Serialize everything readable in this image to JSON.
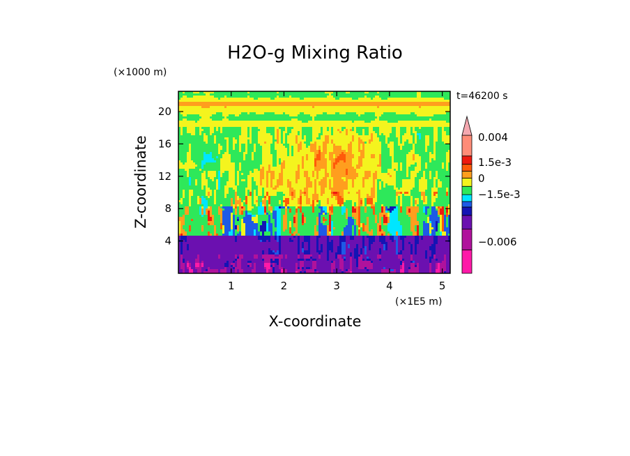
{
  "chart_data": {
    "type": "heatmap",
    "title": "H2O-g Mixing Ratio",
    "xlabel": "X-coordinate",
    "ylabel": "Z-coordinate",
    "x_scale_label": "(×1E5 m)",
    "y_scale_label": "(×1000 m)",
    "time_label": "t=46200 s",
    "xlim": [
      0,
      5.15
    ],
    "ylim": [
      0,
      22.5
    ],
    "x_ticks": [
      "1",
      "2",
      "3",
      "4",
      "5"
    ],
    "y_ticks": [
      "4",
      "8",
      "12",
      "16",
      "20"
    ],
    "colorbar": {
      "levels": [
        {
          "color": "#ff1aa8",
          "range": [
            -0.009,
            -0.006
          ]
        },
        {
          "color": "#b0129c",
          "range": [
            -0.006,
            -0.003
          ]
        },
        {
          "color": "#6b10b0",
          "range": [
            -0.003,
            -0.0015
          ]
        },
        {
          "color": "#1414b4",
          "range": [
            -0.0015,
            -0.001
          ]
        },
        {
          "color": "#1e5ae6",
          "range": [
            -0.001,
            -0.0005
          ]
        },
        {
          "color": "#00e6ff",
          "range": [
            -0.0005,
            0
          ]
        },
        {
          "color": "#2ee85a",
          "range": [
            0,
            0.0005
          ]
        },
        {
          "color": "#f4f41e",
          "range": [
            0.0005,
            0.001
          ]
        },
        {
          "color": "#ff9e1e",
          "range": [
            0.001,
            0.0015
          ]
        },
        {
          "color": "#ff5a0a",
          "range": [
            0.0015,
            0.002
          ]
        },
        {
          "color": "#ee1a10",
          "range": [
            0.002,
            0.003
          ]
        },
        {
          "color": "#ff8c78",
          "range": [
            0.003,
            0.004
          ]
        },
        {
          "color": "#f4a8b0",
          "range": [
            0.004,
            0.006
          ]
        }
      ],
      "tick_labels": [
        "0.004",
        "1.5e-3",
        "0",
        "−1.5e-3",
        "−0.006"
      ]
    },
    "vertical_structure": [
      {
        "z_range": [
          0,
          4.5
        ],
        "dominant": "blue/purple (-1.5e-3 to -0.006)"
      },
      {
        "z_range": [
          4.5,
          8
        ],
        "dominant": "cyan with orange plumes (~1.5e-3)"
      },
      {
        "z_range": [
          8,
          18
        ],
        "dominant": "green/yellow (0 to 1e-3)"
      },
      {
        "z_range": [
          18,
          22.5
        ],
        "dominant": "yellow/green bands"
      }
    ]
  }
}
